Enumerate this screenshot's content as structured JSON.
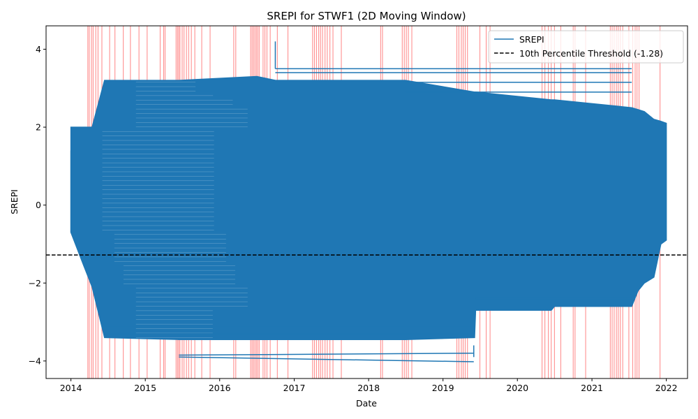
{
  "chart_data": {
    "type": "line",
    "title": "SREPI for STWF1 (2D Moving Window)",
    "xlabel": "Date",
    "ylabel": "SREPI",
    "xlim": [
      "2013-09-01",
      "2022-04-15"
    ],
    "ylim": [
      -4.45,
      4.6
    ],
    "x_ticks": [
      "2014",
      "2015",
      "2016",
      "2017",
      "2018",
      "2019",
      "2020",
      "2021",
      "2022"
    ],
    "y_ticks": [
      -4,
      -2,
      0,
      2,
      4
    ],
    "y_tick_labels": [
      "−4",
      "−2",
      "0",
      "2",
      "4"
    ],
    "grid": false,
    "legend": {
      "position": "top-right",
      "entries": [
        {
          "label": "SREPI",
          "style": "solid",
          "color": "#1f77b4"
        },
        {
          "label": "10th Percentile Threshold (-1.28)",
          "style": "dashed",
          "color": "#000000"
        }
      ]
    },
    "series": [
      {
        "name": "SREPI",
        "color": "#1f77b4",
        "envelope": [
          {
            "x": "2014-01-01",
            "lo": -0.7,
            "hi": 2.0
          },
          {
            "x": "2014-03-01",
            "lo": -1.5,
            "hi": 2.0
          },
          {
            "x": "2014-04-15",
            "lo": -2.1,
            "hi": 2.0
          },
          {
            "x": "2014-06-15",
            "lo": -3.4,
            "hi": 3.2
          },
          {
            "x": "2015-06-15",
            "lo": -3.45,
            "hi": 3.2
          },
          {
            "x": "2016-07-01",
            "lo": -3.45,
            "hi": 3.3
          },
          {
            "x": "2016-10-01",
            "lo": -3.45,
            "hi": 3.2
          },
          {
            "x": "2018-07-01",
            "lo": -3.45,
            "hi": 3.2
          },
          {
            "x": "2019-06-05",
            "lo": -3.4,
            "hi": 2.9
          },
          {
            "x": "2019-06-10",
            "lo": -2.7,
            "hi": 2.9
          },
          {
            "x": "2020-06-15",
            "lo": -2.7,
            "hi": 2.7
          },
          {
            "x": "2020-07-01",
            "lo": -2.6,
            "hi": 2.7
          },
          {
            "x": "2021-07-15",
            "lo": -2.6,
            "hi": 2.5
          },
          {
            "x": "2021-08-15",
            "lo": -2.2,
            "hi": 2.45
          },
          {
            "x": "2021-09-15",
            "lo": -2.0,
            "hi": 2.4
          },
          {
            "x": "2021-11-01",
            "lo": -1.85,
            "hi": 2.2
          },
          {
            "x": "2021-12-05",
            "lo": -1.0,
            "hi": 2.15
          },
          {
            "x": "2022-01-01",
            "lo": -0.9,
            "hi": 2.1
          }
        ],
        "outlier_segments": [
          {
            "x1": "2016-09-30",
            "y1": 4.2,
            "x2": "2016-09-30",
            "y2": 3.5
          },
          {
            "x1": "2016-09-30",
            "y1": 3.5,
            "x2": "2021-07-15",
            "y2": 3.5
          },
          {
            "x1": "2016-09-30",
            "y1": 3.4,
            "x2": "2021-07-15",
            "y2": 3.4
          },
          {
            "x1": "2018-07-01",
            "y1": 3.15,
            "x2": "2021-07-15",
            "y2": 3.15
          },
          {
            "x1": "2018-07-01",
            "y1": 2.9,
            "x2": "2021-07-15",
            "y2": 2.9
          },
          {
            "x1": "2015-06-15",
            "y1": -3.85,
            "x2": "2019-06-01",
            "y2": -3.8
          },
          {
            "x1": "2015-06-15",
            "y1": -3.9,
            "x2": "2019-06-01",
            "y2": -4.02
          },
          {
            "x1": "2019-06-01",
            "y1": -3.6,
            "x2": "2019-06-01",
            "y2": -3.9
          },
          {
            "x1": "2014-06-15",
            "y1": -3.1,
            "x2": "2019-06-05",
            "y2": -3.1
          },
          {
            "x1": "2014-06-15",
            "y1": -3.3,
            "x2": "2019-06-05",
            "y2": -3.3
          },
          {
            "x1": "2019-06-10",
            "y1": -2.4,
            "x2": "2021-07-15",
            "y2": -2.4
          },
          {
            "x1": "2014-01-01",
            "y1": 1.4,
            "x2": "2014-01-01",
            "y2": -0.7
          }
        ]
      },
      {
        "name": "10th Percentile Threshold (-1.28)",
        "type": "hline",
        "y": -1.28,
        "color": "#000000",
        "style": "dashed"
      }
    ],
    "drought_markers": {
      "color": "#ff6b6b",
      "dates": [
        "2014-03-25",
        "2014-04-01",
        "2014-04-12",
        "2014-04-20",
        "2014-05-03",
        "2014-05-14",
        "2014-06-02",
        "2014-07-10",
        "2014-08-05",
        "2014-09-15",
        "2014-10-20",
        "2014-12-01",
        "2015-01-10",
        "2015-03-15",
        "2015-04-01",
        "2015-04-08",
        "2015-06-01",
        "2015-06-08",
        "2015-06-14",
        "2015-06-20",
        "2015-07-01",
        "2015-07-10",
        "2015-07-22",
        "2015-08-02",
        "2015-08-15",
        "2015-09-01",
        "2015-10-05",
        "2015-11-15",
        "2016-03-10",
        "2016-03-20",
        "2016-06-01",
        "2016-06-08",
        "2016-06-15",
        "2016-06-22",
        "2016-06-29",
        "2016-07-06",
        "2016-07-13",
        "2016-08-01",
        "2016-08-10",
        "2016-08-20",
        "2016-09-05",
        "2016-10-10",
        "2016-12-01",
        "2017-04-01",
        "2017-04-10",
        "2017-04-20",
        "2017-05-01",
        "2017-05-10",
        "2017-05-20",
        "2017-06-01",
        "2017-06-12",
        "2017-06-25",
        "2017-07-10",
        "2017-08-20",
        "2018-03-01",
        "2018-03-10",
        "2018-06-15",
        "2018-06-25",
        "2018-07-05",
        "2018-07-15",
        "2018-08-01",
        "2019-03-10",
        "2019-03-20",
        "2019-04-01",
        "2019-04-10",
        "2019-04-20",
        "2019-05-01",
        "2019-07-01",
        "2019-08-01",
        "2019-08-20",
        "2020-05-01",
        "2020-05-15",
        "2020-06-01",
        "2020-06-15",
        "2020-07-01",
        "2020-08-01",
        "2020-10-01",
        "2020-10-10",
        "2020-12-01",
        "2021-04-01",
        "2021-04-10",
        "2021-04-20",
        "2021-05-01",
        "2021-05-10",
        "2021-05-20",
        "2021-06-01",
        "2021-07-01",
        "2021-07-20",
        "2021-08-01",
        "2021-08-10",
        "2021-08-20",
        "2021-12-01"
      ]
    }
  }
}
